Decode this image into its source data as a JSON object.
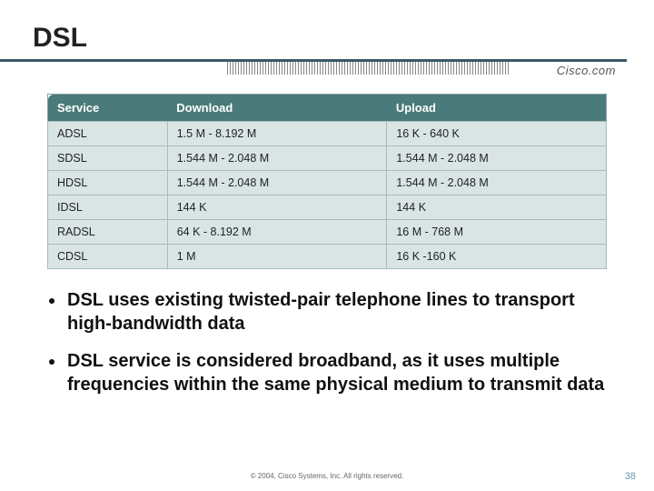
{
  "title": "DSL",
  "logo_text": "Cisco.com",
  "table": {
    "columns": [
      "Service",
      "Download",
      "Upload"
    ],
    "rows": [
      [
        "ADSL",
        "1.5 M - 8.192 M",
        "16 K - 640 K"
      ],
      [
        "SDSL",
        "1.544 M - 2.048 M",
        "1.544 M - 2.048 M"
      ],
      [
        "HDSL",
        "1.544 M - 2.048 M",
        "1.544 M - 2.048 M"
      ],
      [
        "IDSL",
        "144 K",
        "144 K"
      ],
      [
        "RADSL",
        "64 K - 8.192 M",
        "16 M - 768 M"
      ],
      [
        "CDSL",
        "1 M",
        "16 K -160 K"
      ]
    ],
    "header_bg": "#4a7a7a",
    "header_text_color": "#ffffff",
    "cell_bg": "#d9e4e4",
    "border_color": "#a8bcbc"
  },
  "bullets": [
    "DSL uses existing twisted-pair telephone lines to transport high-bandwidth data",
    "DSL service is considered broadband, as it uses multiple frequencies within the same physical medium to transmit data"
  ],
  "footer": "© 2004, Cisco Systems, Inc. All rights reserved.",
  "page_number": "38",
  "colors": {
    "divider": "#3a5a6a",
    "page_number": "#6699aa"
  }
}
